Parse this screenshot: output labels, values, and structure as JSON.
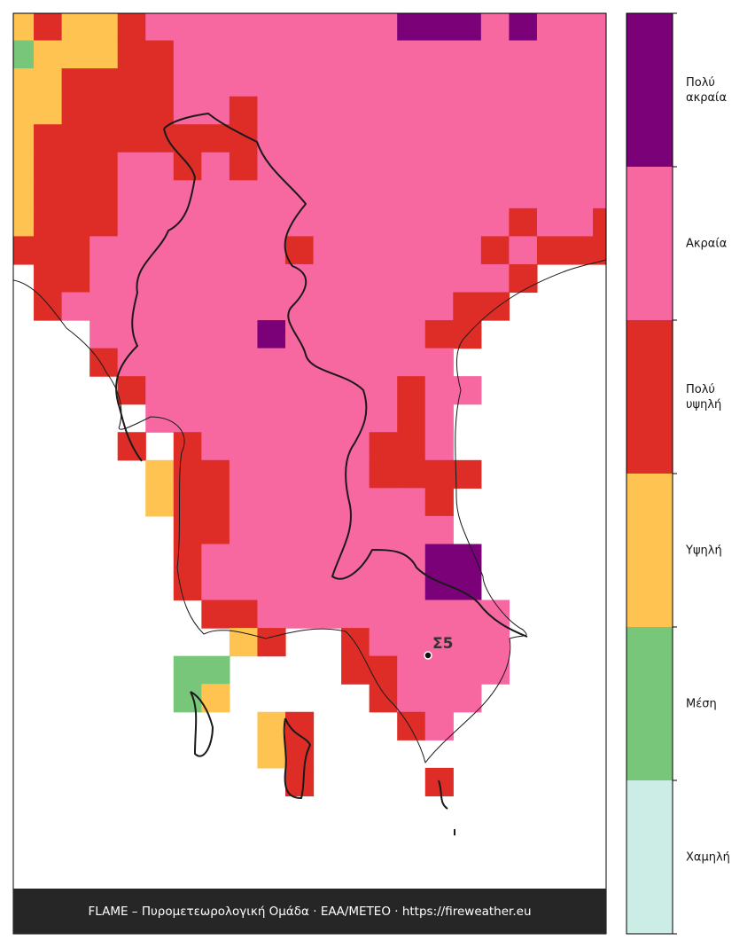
{
  "map": {
    "legend": [
      {
        "label": "Πολύ\nακραία",
        "color": "#7a0177"
      },
      {
        "label": "Ακραία",
        "color": "#f768a1"
      },
      {
        "label": "Πολύ\nυψηλή",
        "color": "#de2d26"
      },
      {
        "label": "Υψηλή",
        "color": "#fec350"
      },
      {
        "label": "Μέση",
        "color": "#78c679"
      },
      {
        "label": "Χαμηλή",
        "color": "#ccece6"
      }
    ],
    "station": {
      "label": "Σ5"
    },
    "footer": "FLAME – Πυρομετεωρολογική Ομάδα · ΕΑΑ/METEO · https://fireweather.eu"
  }
}
